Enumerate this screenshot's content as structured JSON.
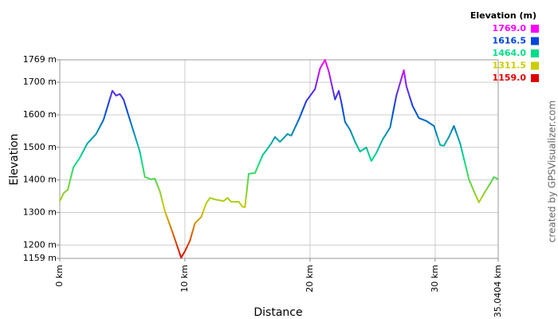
{
  "chart_data": {
    "type": "line",
    "x_label": "Distance",
    "y_label": "Elevation",
    "credit": "created by GPSVisualizer.com",
    "legend_title": "Elevation (m)",
    "color_scale": [
      {
        "value": 1769,
        "label": "1769.0",
        "color": "#ff00ff"
      },
      {
        "value": 1616.5,
        "label": "1616.5",
        "color": "#0044dd"
      },
      {
        "value": 1464,
        "label": "1464.0",
        "color": "#00dd88"
      },
      {
        "value": 1311.5,
        "label": "1311.5",
        "color": "#cccc00"
      },
      {
        "value": 1159,
        "label": "1159.0",
        "color": "#dd0000"
      }
    ],
    "x": [
      0,
      0.32,
      0.64,
      1.08,
      1.6,
      2.2,
      2.9,
      3.5,
      4.2,
      4.5,
      4.8,
      5.1,
      5.7,
      6.4,
      6.8,
      7.3,
      7.6,
      8.0,
      8.4,
      8.8,
      9.2,
      9.7,
      10.0,
      10.4,
      10.8,
      11.3,
      11.7,
      12.0,
      12.4,
      13.1,
      13.4,
      13.7,
      14.3,
      14.6,
      14.8,
      15.1,
      15.6,
      16.2,
      16.9,
      17.2,
      17.6,
      18.2,
      18.5,
      19.1,
      19.7,
      20.4,
      20.8,
      21.2,
      21.5,
      22.0,
      22.3,
      22.5,
      22.8,
      23.2,
      23.6,
      24.0,
      24.5,
      24.9,
      25.3,
      25.8,
      26.4,
      26.9,
      27.5,
      27.7,
      28.2,
      28.7,
      29.3,
      29.9,
      30.4,
      30.7,
      31.1,
      31.5,
      32.0,
      32.7,
      33.1,
      33.5,
      33.9,
      34.4,
      34.7,
      35.04
    ],
    "values": [
      1335,
      1360,
      1370,
      1438,
      1468,
      1512,
      1541,
      1585,
      1674,
      1659,
      1664,
      1647,
      1573,
      1487,
      1409,
      1402,
      1404,
      1365,
      1304,
      1262,
      1218,
      1161,
      1181,
      1213,
      1267,
      1286,
      1328,
      1345,
      1340,
      1335,
      1345,
      1333,
      1333,
      1318,
      1316,
      1419,
      1421,
      1475,
      1512,
      1532,
      1517,
      1541,
      1536,
      1585,
      1642,
      1679,
      1742,
      1769,
      1733,
      1647,
      1674,
      1639,
      1578,
      1554,
      1517,
      1487,
      1500,
      1458,
      1483,
      1524,
      1561,
      1659,
      1737,
      1688,
      1627,
      1590,
      1581,
      1566,
      1507,
      1505,
      1532,
      1566,
      1512,
      1402,
      1365,
      1331,
      1358,
      1389,
      1409,
      1402
    ],
    "xlim": [
      0,
      35.0404
    ],
    "ylim": [
      1159,
      1769
    ],
    "xticks": [
      {
        "value": 0,
        "label": "0 km"
      },
      {
        "value": 10,
        "label": "10 km"
      },
      {
        "value": 20,
        "label": "20 km"
      },
      {
        "value": 30,
        "label": "30 km"
      },
      {
        "value": 35.0404,
        "label": "35.0404 km"
      }
    ],
    "yticks": [
      {
        "value": 1159,
        "label": "1159 m"
      },
      {
        "value": 1200,
        "label": "1200 m"
      },
      {
        "value": 1300,
        "label": "1300 m"
      },
      {
        "value": 1400,
        "label": "1400 m"
      },
      {
        "value": 1500,
        "label": "1500 m"
      },
      {
        "value": 1600,
        "label": "1600 m"
      },
      {
        "value": 1700,
        "label": "1700 m"
      },
      {
        "value": 1769,
        "label": "1769 m"
      }
    ],
    "grid": true
  }
}
